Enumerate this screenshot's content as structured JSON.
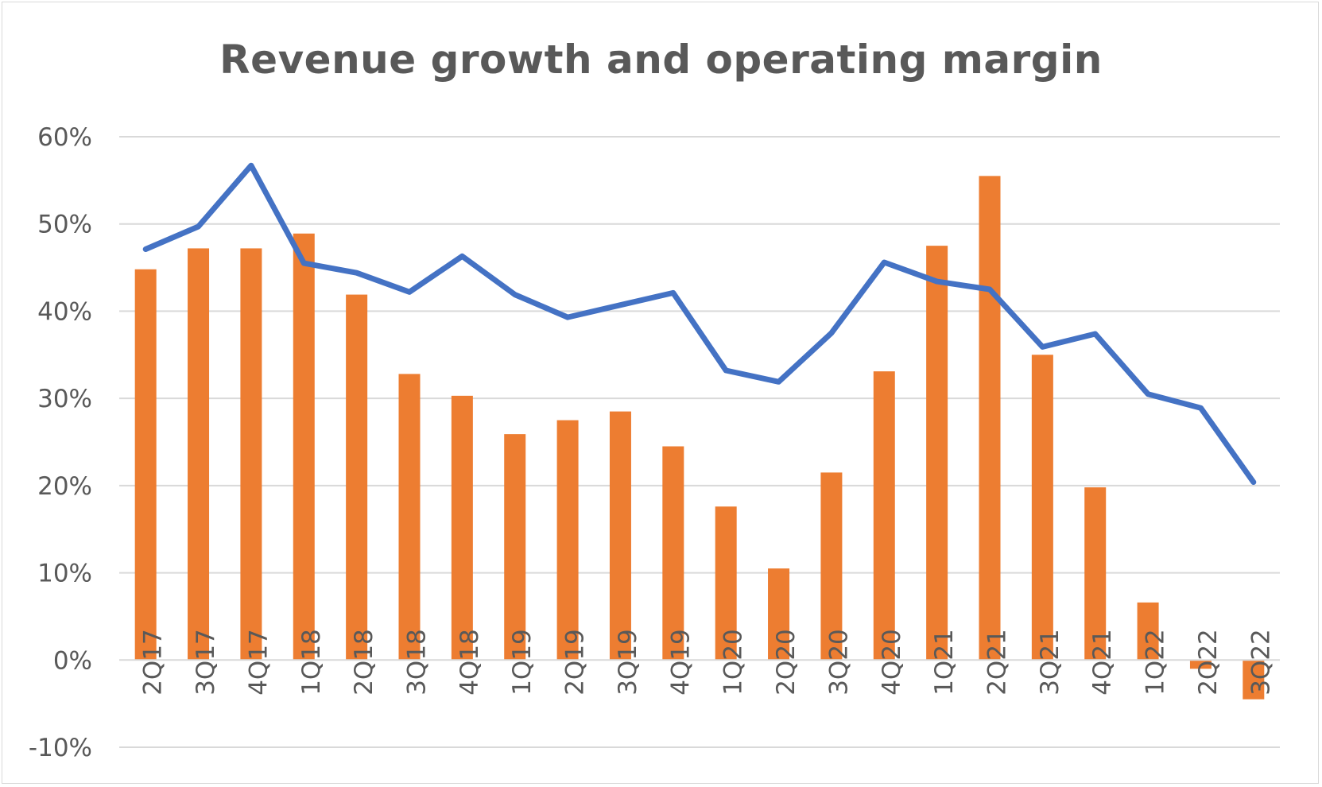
{
  "chart_data": {
    "type": "bar",
    "title": "Revenue growth and operating margin",
    "xlabel": "",
    "ylabel": "",
    "categories": [
      "2Q17",
      "3Q17",
      "4Q17",
      "1Q18",
      "2Q18",
      "3Q18",
      "4Q18",
      "1Q19",
      "2Q19",
      "3Q19",
      "4Q19",
      "1Q20",
      "2Q20",
      "3Q20",
      "4Q20",
      "1Q21",
      "2Q21",
      "3Q21",
      "4Q21",
      "1Q22",
      "2Q22",
      "3Q22"
    ],
    "series": [
      {
        "type": "bar",
        "color": "#ed7d31",
        "values": [
          44.8,
          47.2,
          47.2,
          48.9,
          41.9,
          32.8,
          30.3,
          25.9,
          27.5,
          28.5,
          24.5,
          17.6,
          10.5,
          21.5,
          33.1,
          47.5,
          55.5,
          35.0,
          19.8,
          6.6,
          -1.0,
          -4.5
        ]
      },
      {
        "type": "line",
        "color": "#4472c4",
        "values": [
          47.1,
          49.7,
          56.7,
          45.5,
          44.4,
          42.2,
          46.3,
          41.9,
          39.3,
          40.7,
          42.1,
          33.2,
          31.9,
          37.5,
          45.6,
          43.4,
          42.5,
          35.9,
          37.4,
          30.5,
          28.9,
          20.4
        ]
      }
    ],
    "yticks": [
      "60%",
      "50%",
      "40%",
      "30%",
      "20%",
      "10%",
      "0%",
      "-10%"
    ],
    "ylim": [
      -10,
      60
    ],
    "grid": true,
    "legend": "none"
  }
}
